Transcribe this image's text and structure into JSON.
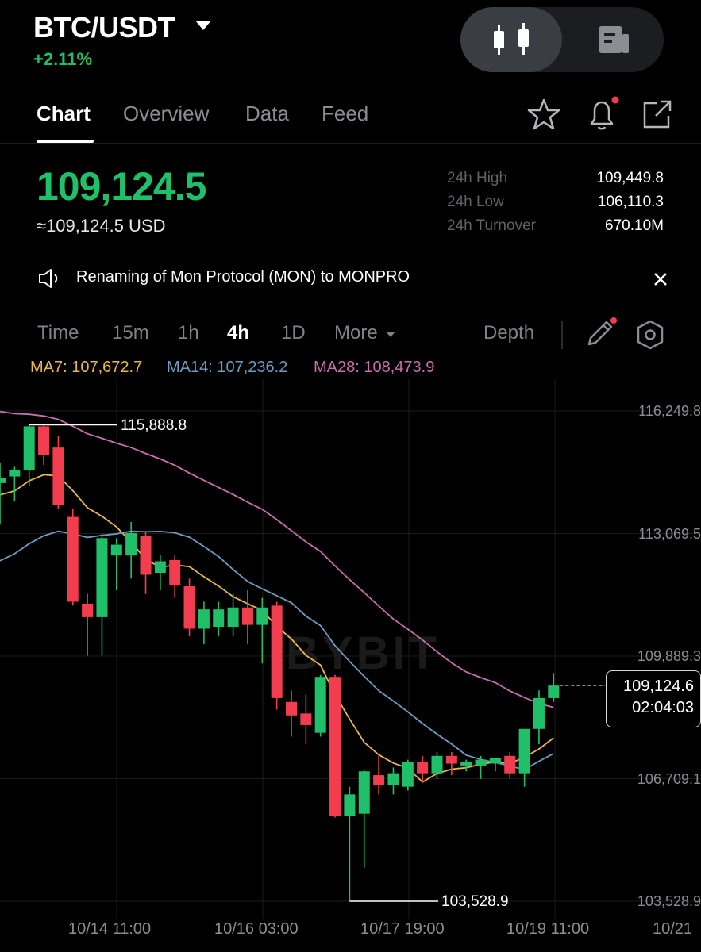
{
  "header": {
    "pair": "BTC/USDT",
    "change": "+2.11%",
    "view_toggle": {
      "selected": "candlestick-icon",
      "other": "document-icon"
    }
  },
  "tabs": [
    "Chart",
    "Overview",
    "Data",
    "Feed"
  ],
  "active_tab": "Chart",
  "price": {
    "last": "109,124.5",
    "usd": "≈109,124.5 USD"
  },
  "stats": [
    {
      "label": "24h High",
      "value": "109,449.8"
    },
    {
      "label": "24h Low",
      "value": "106,110.3"
    },
    {
      "label": "24h Turnover",
      "value": "670.10M"
    }
  ],
  "announcement": "Renaming of Mon Protocol (MON) to MONPRO",
  "timeframes": {
    "items": [
      "Time",
      "15m",
      "1h",
      "4h",
      "1D",
      "More"
    ],
    "active": "4h",
    "depth": "Depth"
  },
  "indicators": [
    {
      "label": "MA7: 107,672.7",
      "color": "#e8b84a"
    },
    {
      "label": "MA14: 107,236.2",
      "color": "#6f9bc0"
    },
    {
      "label": "MA28: 108,473.9",
      "color": "#c86fb0"
    }
  ],
  "colors": {
    "up": "#20c06a",
    "down": "#f23d4f",
    "notify_dot": "#f23d4f"
  },
  "chart": {
    "watermark": "BYBIT",
    "y_ticks": [
      "116,249.8",
      "113,069.5",
      "109,889.3",
      "106,709.1",
      "103,528.9"
    ],
    "x_ticks": [
      "10/14 11:00",
      "10/16 03:00",
      "10/17 19:00",
      "10/19 11:00",
      "10/21"
    ],
    "high_marker": "115,888.8",
    "low_marker": "103,528.9",
    "current_price": "109,124.6",
    "countdown": "02:04:03"
  },
  "chart_data": {
    "type": "candlestick",
    "ylim": [
      103528.9,
      116249.8
    ],
    "candles": [
      {
        "o": 114380,
        "h": 114900,
        "l": 113300,
        "c": 114500
      },
      {
        "o": 114550,
        "h": 114800,
        "l": 113900,
        "c": 114720
      },
      {
        "o": 114720,
        "h": 115888.8,
        "l": 114300,
        "c": 115850
      },
      {
        "o": 115850,
        "h": 115888.8,
        "l": 114850,
        "c": 115100
      },
      {
        "o": 115300,
        "h": 115600,
        "l": 113700,
        "c": 113800
      },
      {
        "o": 113500,
        "h": 113700,
        "l": 111200,
        "c": 111300
      },
      {
        "o": 111250,
        "h": 111500,
        "l": 109900,
        "c": 110900
      },
      {
        "o": 110900,
        "h": 113060,
        "l": 109900,
        "c": 112950
      },
      {
        "o": 112500,
        "h": 112950,
        "l": 111600,
        "c": 112780
      },
      {
        "o": 112500,
        "h": 113370,
        "l": 111900,
        "c": 113080
      },
      {
        "o": 113000,
        "h": 113100,
        "l": 111500,
        "c": 112000
      },
      {
        "o": 112050,
        "h": 112500,
        "l": 111600,
        "c": 112350
      },
      {
        "o": 112380,
        "h": 112500,
        "l": 111400,
        "c": 111720
      },
      {
        "o": 111700,
        "h": 111900,
        "l": 110400,
        "c": 110600
      },
      {
        "o": 110600,
        "h": 111300,
        "l": 110200,
        "c": 111100
      },
      {
        "o": 110650,
        "h": 111300,
        "l": 110400,
        "c": 111100
      },
      {
        "o": 110650,
        "h": 111500,
        "l": 110400,
        "c": 111150
      },
      {
        "o": 111150,
        "h": 111600,
        "l": 110200,
        "c": 110700
      },
      {
        "o": 110700,
        "h": 111400,
        "l": 109700,
        "c": 111150
      },
      {
        "o": 111200,
        "h": 111300,
        "l": 108500,
        "c": 108800
      },
      {
        "o": 108700,
        "h": 109000,
        "l": 107800,
        "c": 108350
      },
      {
        "o": 108400,
        "h": 108900,
        "l": 107600,
        "c": 108100
      },
      {
        "o": 107900,
        "h": 109400,
        "l": 107800,
        "c": 109350
      },
      {
        "o": 109350,
        "h": 109400,
        "l": 105700,
        "c": 105750
      },
      {
        "o": 105750,
        "h": 106500,
        "l": 103528.9,
        "c": 106300
      },
      {
        "o": 105800,
        "h": 106950,
        "l": 104400,
        "c": 106900
      },
      {
        "o": 106800,
        "h": 107300,
        "l": 106300,
        "c": 106550
      },
      {
        "o": 106550,
        "h": 107000,
        "l": 106300,
        "c": 106850
      },
      {
        "o": 106500,
        "h": 107200,
        "l": 106400,
        "c": 107150
      },
      {
        "o": 107150,
        "h": 107300,
        "l": 106600,
        "c": 106850
      },
      {
        "o": 106850,
        "h": 107400,
        "l": 106700,
        "c": 107300
      },
      {
        "o": 107300,
        "h": 107400,
        "l": 106800,
        "c": 107100
      },
      {
        "o": 107050,
        "h": 107200,
        "l": 106900,
        "c": 107150
      },
      {
        "o": 107050,
        "h": 107300,
        "l": 106700,
        "c": 107200
      },
      {
        "o": 107100,
        "h": 107250,
        "l": 106900,
        "c": 107250
      },
      {
        "o": 107300,
        "h": 107400,
        "l": 106700,
        "c": 106850
      },
      {
        "o": 106850,
        "h": 108000,
        "l": 106500,
        "c": 108000
      },
      {
        "o": 108000,
        "h": 109000,
        "l": 107600,
        "c": 108800
      },
      {
        "o": 108800,
        "h": 109449.8,
        "l": 108700,
        "c": 109124.6
      }
    ]
  }
}
